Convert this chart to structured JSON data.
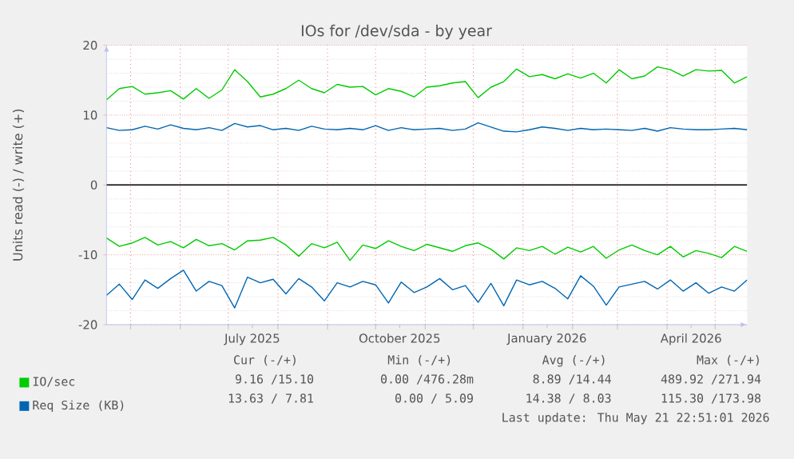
{
  "chart_data": {
    "type": "line",
    "title": "IOs for /dev/sda - by year",
    "ylabel": "Units read (-) / write (+)",
    "x": [
      "2025-04-16",
      "2025-04-24",
      "2025-05-02",
      "2025-05-10",
      "2025-05-18",
      "2025-05-26",
      "2025-06-03",
      "2025-06-11",
      "2025-06-19",
      "2025-06-27",
      "2025-07-05",
      "2025-07-13",
      "2025-07-21",
      "2025-07-29",
      "2025-08-06",
      "2025-08-14",
      "2025-08-22",
      "2025-08-30",
      "2025-09-07",
      "2025-09-15",
      "2025-09-23",
      "2025-10-01",
      "2025-10-09",
      "2025-10-17",
      "2025-10-25",
      "2025-11-02",
      "2025-11-10",
      "2025-11-18",
      "2025-11-26",
      "2025-12-04",
      "2025-12-12",
      "2025-12-20",
      "2025-12-28",
      "2026-01-05",
      "2026-01-13",
      "2026-01-21",
      "2026-01-29",
      "2026-02-06",
      "2026-02-14",
      "2026-02-22",
      "2026-03-02",
      "2026-03-10",
      "2026-03-18",
      "2026-03-26",
      "2026-04-03",
      "2026-04-11",
      "2026-04-19",
      "2026-04-27",
      "2026-05-05",
      "2026-05-13",
      "2026-05-21"
    ],
    "series": [
      {
        "name": "IO/sec",
        "color": "#00cc00",
        "values": [
          12.2,
          13.8,
          14.1,
          13.0,
          13.2,
          13.5,
          12.3,
          13.8,
          12.4,
          13.6,
          16.5,
          14.8,
          12.6,
          13.0,
          13.8,
          15.0,
          13.8,
          13.2,
          14.4,
          14.0,
          14.1,
          12.9,
          13.8,
          13.4,
          12.6,
          14.0,
          14.2,
          14.6,
          14.8,
          12.5,
          14.0,
          14.8,
          16.6,
          15.5,
          15.8,
          15.2,
          15.9,
          15.3,
          16.0,
          14.6,
          16.5,
          15.2,
          15.6,
          16.9,
          16.5,
          15.6,
          16.5,
          16.3,
          16.4,
          14.6,
          15.5
        ]
      },
      {
        "color": "#00cc00",
        "values": [
          -7.6,
          -8.8,
          -8.3,
          -7.5,
          -8.6,
          -8.1,
          -9.0,
          -7.8,
          -8.7,
          -8.4,
          -9.3,
          -8.0,
          -7.9,
          -7.5,
          -8.6,
          -10.2,
          -8.4,
          -9.0,
          -8.2,
          -10.8,
          -8.6,
          -9.1,
          -8.0,
          -8.8,
          -9.4,
          -8.5,
          -9.0,
          -9.5,
          -8.7,
          -8.3,
          -9.2,
          -10.6,
          -9.0,
          -9.4,
          -8.8,
          -9.9,
          -8.9,
          -9.6,
          -8.8,
          -10.5,
          -9.3,
          -8.6,
          -9.4,
          -10.0,
          -8.8,
          -10.3,
          -9.4,
          -9.8,
          -10.4,
          -8.8,
          -9.5
        ]
      },
      {
        "name": "Req Size (KB)",
        "color": "#0066b3",
        "values": [
          8.2,
          7.8,
          7.9,
          8.4,
          8.0,
          8.6,
          8.1,
          7.9,
          8.2,
          7.8,
          8.8,
          8.3,
          8.5,
          7.9,
          8.1,
          7.8,
          8.4,
          8.0,
          7.9,
          8.1,
          7.9,
          8.5,
          7.8,
          8.2,
          7.9,
          8.0,
          8.1,
          7.8,
          8.0,
          8.9,
          8.3,
          7.7,
          7.6,
          7.9,
          8.3,
          8.1,
          7.8,
          8.1,
          7.9,
          8.0,
          7.9,
          7.8,
          8.1,
          7.7,
          8.2,
          8.0,
          7.9,
          7.9,
          8.0,
          8.1,
          7.9
        ]
      },
      {
        "color": "#0066b3",
        "values": [
          -15.8,
          -14.2,
          -16.4,
          -13.6,
          -14.8,
          -13.4,
          -12.2,
          -15.2,
          -13.8,
          -14.4,
          -17.6,
          -13.2,
          -14.0,
          -13.5,
          -15.6,
          -13.4,
          -14.6,
          -16.6,
          -14.0,
          -14.6,
          -13.8,
          -14.3,
          -16.9,
          -13.9,
          -15.4,
          -14.6,
          -13.4,
          -15.0,
          -14.4,
          -16.8,
          -14.1,
          -17.3,
          -13.6,
          -14.3,
          -13.8,
          -14.8,
          -16.3,
          -13.0,
          -14.5,
          -17.2,
          -14.6,
          -14.2,
          -13.8,
          -14.9,
          -13.6,
          -15.2,
          -14.0,
          -15.5,
          -14.6,
          -15.2,
          -13.6
        ]
      }
    ],
    "xlim": [
      "2025-04-16",
      "2026-05-21"
    ],
    "xticks": [
      {
        "value": "2025-05-01",
        "label": null
      },
      {
        "value": "2025-06-01",
        "label": null
      },
      {
        "value": "2025-07-01",
        "label": null
      },
      {
        "value": "2025-07-16",
        "label": "July 2025"
      },
      {
        "value": "2025-08-01",
        "label": null
      },
      {
        "value": "2025-09-01",
        "label": null
      },
      {
        "value": "2025-10-01",
        "label": null
      },
      {
        "value": "2025-10-16",
        "label": "October 2025"
      },
      {
        "value": "2025-11-01",
        "label": null
      },
      {
        "value": "2025-12-01",
        "label": null
      },
      {
        "value": "2026-01-01",
        "label": null
      },
      {
        "value": "2026-01-16",
        "label": "January 2026"
      },
      {
        "value": "2026-02-01",
        "label": null
      },
      {
        "value": "2026-03-01",
        "label": null
      },
      {
        "value": "2026-04-01",
        "label": null
      },
      {
        "value": "2026-04-16",
        "label": "April 2026"
      },
      {
        "value": "2026-05-01",
        "label": null
      }
    ],
    "ylim": [
      -20,
      20
    ],
    "yticks": [
      -20,
      -10,
      0,
      10,
      20
    ],
    "ref_lines": [
      {
        "axis": "y",
        "value": 0,
        "color": "#000000"
      }
    ],
    "grid": true,
    "legend": "bottom left",
    "marker": "none",
    "line_style": "solid",
    "annotations": [
      "Cur (-/+)",
      "Min (-/+)",
      "Avg (-/+)",
      "Max (-/+)",
      "9.16 /15.10",
      "0.00 /476.28m",
      "8.89 /14.44",
      "489.92 /271.94",
      "13.63 / 7.81",
      "0.00 / 5.09",
      "14.38 / 8.03",
      "115.30 /173.98",
      "Last update: Thu May 21 22:51:01 2026"
    ]
  }
}
